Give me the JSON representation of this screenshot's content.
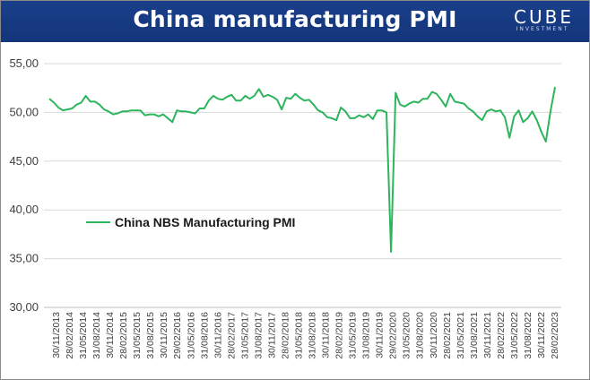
{
  "header": {
    "title": "China manufacturing PMI",
    "logo_text": "CUBE",
    "logo_subtext": "INVESTMENT"
  },
  "colors": {
    "header_bg": "#1a3f8a",
    "series": "#2db55d",
    "grid": "#d9d9d9"
  },
  "chart_data": {
    "type": "line",
    "title": "China manufacturing PMI",
    "xlabel": "",
    "ylabel": "",
    "ylim": [
      30,
      55
    ],
    "yticks": [
      "30,00",
      "35,00",
      "40,00",
      "45,00",
      "50,00",
      "55,00"
    ],
    "ytick_values": [
      30,
      35,
      40,
      45,
      50,
      55
    ],
    "grid": "horizontal",
    "legend_position": "center-left",
    "x_tick_labels": [
      "30/11/2013",
      "28/02/2014",
      "31/05/2014",
      "31/08/2014",
      "30/11/2014",
      "28/02/2015",
      "31/05/2015",
      "31/08/2015",
      "30/11/2015",
      "29/02/2016",
      "31/05/2016",
      "31/08/2016",
      "30/11/2016",
      "28/02/2017",
      "31/05/2017",
      "31/08/2017",
      "30/11/2017",
      "28/02/2018",
      "31/05/2018",
      "31/08/2018",
      "30/11/2018",
      "28/02/2019",
      "31/05/2019",
      "31/08/2019",
      "30/11/2019",
      "29/02/2020",
      "31/05/2020",
      "31/08/2020",
      "30/11/2020",
      "28/02/2021",
      "31/05/2021",
      "31/08/2021",
      "30/11/2021",
      "28/02/2022",
      "31/05/2022",
      "31/08/2022",
      "30/11/2022",
      "28/02/2023"
    ],
    "series": [
      {
        "name": "China NBS Manufacturing PMI",
        "color": "#2db55d",
        "values": [
          51.4,
          51.0,
          50.5,
          50.2,
          50.3,
          50.4,
          50.8,
          51.0,
          51.7,
          51.1,
          51.1,
          50.8,
          50.3,
          50.1,
          49.8,
          49.9,
          50.1,
          50.1,
          50.2,
          50.2,
          50.2,
          49.7,
          49.8,
          49.8,
          49.6,
          49.8,
          49.4,
          49.0,
          50.2,
          50.1,
          50.1,
          50.0,
          49.9,
          50.4,
          50.4,
          51.2,
          51.7,
          51.4,
          51.3,
          51.6,
          51.8,
          51.2,
          51.2,
          51.7,
          51.4,
          51.7,
          52.4,
          51.6,
          51.8,
          51.6,
          51.3,
          50.3,
          51.5,
          51.4,
          51.9,
          51.5,
          51.2,
          51.3,
          50.8,
          50.2,
          50.0,
          49.5,
          49.4,
          49.2,
          50.5,
          50.1,
          49.4,
          49.4,
          49.7,
          49.5,
          49.8,
          49.3,
          50.2,
          50.2,
          50.0,
          35.7,
          52.0,
          50.8,
          50.6,
          50.9,
          51.1,
          51.0,
          51.4,
          51.4,
          52.1,
          51.9,
          51.3,
          50.6,
          51.9,
          51.1,
          51.0,
          50.9,
          50.4,
          50.1,
          49.6,
          49.2,
          50.1,
          50.3,
          50.1,
          50.2,
          49.5,
          47.4,
          49.6,
          50.2,
          49.0,
          49.4,
          50.1,
          49.2,
          48.0,
          47.0,
          50.1,
          52.6
        ]
      }
    ]
  }
}
